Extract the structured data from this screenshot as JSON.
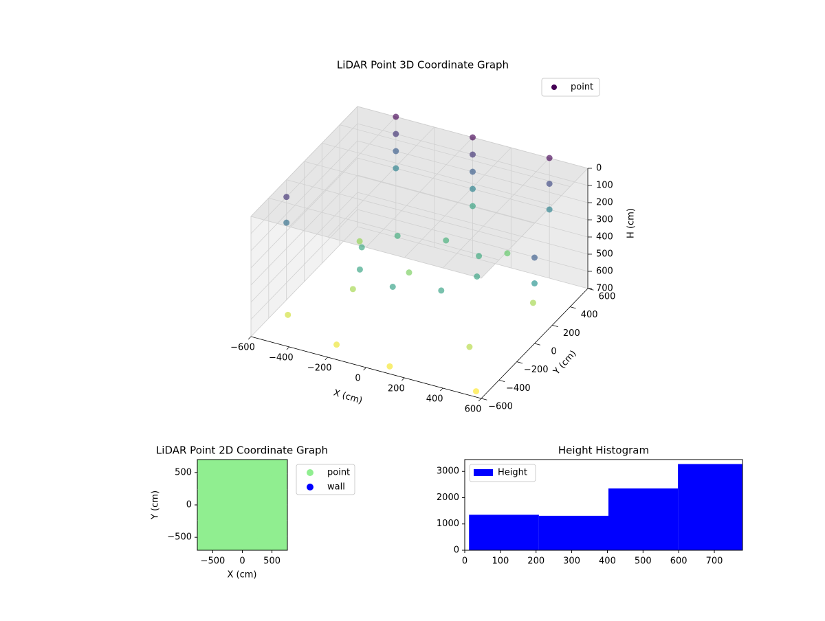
{
  "chart_data": [
    {
      "type": "scatter3d",
      "title": "LiDAR Point 3D Coordinate Graph",
      "x_label": "X (cm)",
      "y_label": "Y (cm)",
      "z_label": "H (cm)",
      "xlim": [
        -600,
        600
      ],
      "ylim": [
        -600,
        600
      ],
      "zlim": [
        700,
        0
      ],
      "xticks": [
        {
          "value": -600,
          "label": "−600"
        },
        {
          "value": -400,
          "label": "−400"
        },
        {
          "value": -200,
          "label": "−200"
        },
        0,
        200,
        400,
        600
      ],
      "yticks": [
        {
          "value": -600,
          "label": "−600"
        },
        {
          "value": -400,
          "label": "−400"
        },
        {
          "value": -200,
          "label": "−200"
        },
        0,
        200,
        400,
        600
      ],
      "zticks": [
        0,
        100,
        200,
        300,
        400,
        500,
        600,
        700
      ],
      "colormap": "viridis",
      "legend": "upper right",
      "series": [
        {
          "name": "point",
          "color": "#440154",
          "x": [
            -400,
            -400,
            -400,
            -400,
            0,
            0,
            0,
            0,
            0,
            400,
            400,
            400,
            300,
            212,
            0,
            -212,
            -300,
            -212,
            0,
            212,
            -500,
            -200,
            100,
            400,
            500,
            -450,
            -100,
            250,
            -300,
            550,
            -600,
            -600,
            600,
            600
          ],
          "y": [
            600,
            600,
            600,
            600,
            600,
            600,
            600,
            600,
            600,
            600,
            600,
            600,
            0,
            212,
            300,
            212,
            0,
            -212,
            -300,
            -212,
            -400,
            -500,
            -550,
            -300,
            200,
            300,
            100,
            450,
            -100,
            -550,
            -200,
            -200,
            0,
            0
          ],
          "z": [
            0,
            100,
            200,
            300,
            0,
            100,
            200,
            300,
            400,
            0,
            150,
            300,
            400,
            420,
            440,
            430,
            410,
            400,
            390,
            395,
            650,
            680,
            690,
            620,
            600,
            580,
            550,
            520,
            600,
            700,
            100,
            250,
            200,
            350
          ]
        }
      ]
    },
    {
      "type": "scatter",
      "title": "LiDAR Point 2D Coordinate Graph",
      "x_label": "X (cm)",
      "y_label": "Y (cm)",
      "xlim": [
        -760,
        760
      ],
      "ylim": [
        -700,
        700
      ],
      "xticks": [
        {
          "value": -500,
          "label": "−500"
        },
        0,
        500
      ],
      "yticks": [
        {
          "value": -500,
          "label": "−500"
        },
        0,
        500
      ],
      "legend": "outside right",
      "series": [
        {
          "name": "point",
          "color": "#90ee90",
          "x": [
            -600,
            -360,
            -120,
            120,
            360,
            600,
            -600,
            -360,
            -120,
            120,
            360,
            600,
            -600,
            -360,
            -120,
            120,
            360,
            600,
            -600,
            -360,
            -120,
            120,
            360,
            600,
            -600,
            -360,
            -120,
            120,
            360,
            600,
            -600,
            -360,
            -120,
            120,
            360,
            600
          ],
          "y": [
            -600,
            -600,
            -600,
            -600,
            -600,
            -600,
            -360,
            -360,
            -360,
            -360,
            -360,
            -360,
            -120,
            -120,
            -120,
            -120,
            -120,
            -120,
            120,
            120,
            120,
            120,
            120,
            120,
            360,
            360,
            360,
            360,
            360,
            360,
            600,
            600,
            600,
            600,
            600,
            600
          ]
        },
        {
          "name": "wall",
          "color": "#0000ff",
          "x": [],
          "y": []
        }
      ]
    },
    {
      "type": "histogram",
      "title": "Height Histogram",
      "bins": [
        12,
        208,
        403,
        598,
        779
      ],
      "series": [
        {
          "name": "Height",
          "color": "#0000ff",
          "values": [
            1350,
            1310,
            2350,
            3280
          ]
        }
      ],
      "xlim": [
        0,
        779
      ],
      "ylim": [
        0,
        3450
      ],
      "xticks": [
        0,
        100,
        200,
        300,
        400,
        500,
        600,
        700
      ],
      "yticks": [
        0,
        1000,
        2000,
        3000
      ],
      "legend": "upper left"
    }
  ]
}
